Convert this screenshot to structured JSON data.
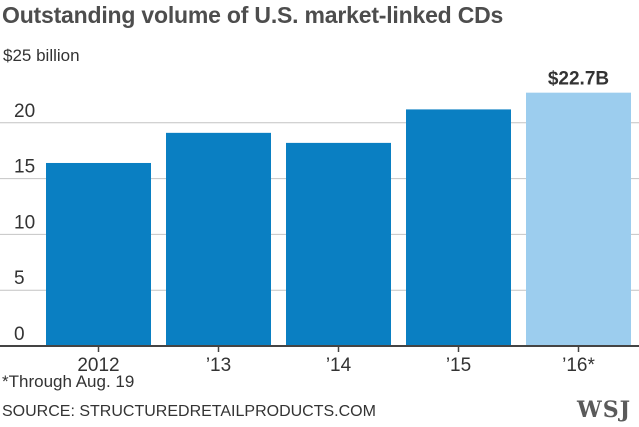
{
  "chart_data": {
    "type": "bar",
    "title": "Outstanding volume of U.S. market-linked CDs",
    "ylabel": "$25 billion",
    "categories": [
      "2012",
      "’13",
      "’14",
      "’15",
      "’16*"
    ],
    "values": [
      16.4,
      19.1,
      18.2,
      21.2,
      22.7
    ],
    "value_label": "$22.7B",
    "ylim": [
      0,
      25
    ],
    "y_ticks": [
      "0",
      "5",
      "10",
      "15",
      "20"
    ],
    "grid": true,
    "colors": {
      "bar": "#0a7fc2",
      "highlight": "#9ccdee",
      "grid": "#c4c4c4",
      "axis": "#444444"
    },
    "highlight_index": 4
  },
  "footnote": "*Through Aug. 19",
  "source": "SOURCE: STRUCTUREDRETAILPRODUCTS.COM",
  "logo": "WSJ"
}
